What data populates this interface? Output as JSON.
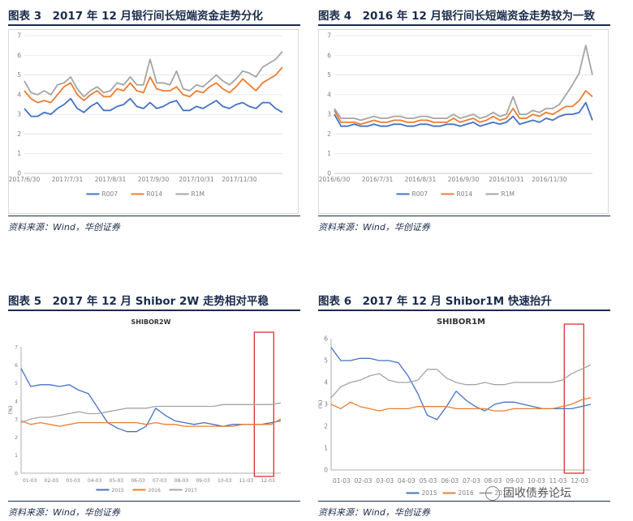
{
  "panels": [
    {
      "caption": "图表 3　2017 年 12 月银行间长短端资金走势分化",
      "source": "资料来源：Wind，华创证券"
    },
    {
      "caption": "图表 4　2016 年 12 月银行间长短端资金走势较为一致",
      "source": "资料来源：Wind，华创证券"
    },
    {
      "caption": "图表 5　2017 年 12 月 Shibor 2W 走势相对平稳",
      "source": "资料来源：Wind，华创证券"
    },
    {
      "caption": "图表 6　2017 年 12 月 Shibor1M 快速抬升",
      "source": "资料来源：Wind，华创证券"
    }
  ],
  "watermark": "固收债券论坛",
  "colors": {
    "blue": "#4472c4",
    "orange": "#ed7d31",
    "gray": "#a5a5a5",
    "box": "#e03030",
    "caption": "#1b2c4c"
  },
  "chart_data": [
    {
      "type": "line",
      "title": "",
      "x_ticks": [
        "2017/6/30",
        "2017/7/31",
        "2017/8/31",
        "2017/9/30",
        "2017/10/31",
        "2017/11/30"
      ],
      "ylim": [
        0,
        7
      ],
      "y_ticks": [
        0,
        1,
        2,
        3,
        4,
        5,
        6,
        7
      ],
      "grid": true,
      "legend": "bottom",
      "series": [
        {
          "name": "R007",
          "color": "blue",
          "values": [
            3.3,
            2.9,
            2.9,
            3.1,
            3.0,
            3.3,
            3.5,
            3.8,
            3.3,
            3.1,
            3.4,
            3.6,
            3.2,
            3.2,
            3.4,
            3.5,
            3.8,
            3.4,
            3.3,
            3.6,
            3.3,
            3.4,
            3.6,
            3.7,
            3.2,
            3.2,
            3.4,
            3.3,
            3.5,
            3.7,
            3.4,
            3.3,
            3.5,
            3.6,
            3.4,
            3.3,
            3.6,
            3.6,
            3.3,
            3.1
          ]
        },
        {
          "name": "R014",
          "color": "orange",
          "values": [
            4.2,
            3.8,
            3.6,
            3.7,
            3.6,
            4.0,
            4.4,
            4.6,
            4.0,
            3.7,
            4.0,
            4.2,
            3.9,
            3.9,
            4.3,
            4.2,
            4.6,
            4.2,
            4.1,
            4.9,
            4.3,
            4.2,
            4.2,
            4.4,
            4.0,
            3.9,
            4.2,
            4.1,
            4.4,
            4.6,
            4.3,
            4.1,
            4.4,
            4.8,
            4.5,
            4.2,
            4.6,
            4.8,
            5.0,
            5.4
          ]
        },
        {
          "name": "R1M",
          "color": "gray",
          "values": [
            4.7,
            4.1,
            4.0,
            4.2,
            4.0,
            4.5,
            4.6,
            4.9,
            4.3,
            3.9,
            4.2,
            4.4,
            4.1,
            4.2,
            4.6,
            4.5,
            4.9,
            4.5,
            4.5,
            5.8,
            4.6,
            4.6,
            4.5,
            5.2,
            4.3,
            4.2,
            4.5,
            4.4,
            4.7,
            5.0,
            4.7,
            4.5,
            4.8,
            5.2,
            5.1,
            4.9,
            5.4,
            5.6,
            5.8,
            6.2
          ]
        }
      ]
    },
    {
      "type": "line",
      "title": "",
      "x_ticks": [
        "2016/6/30",
        "2016/7/31",
        "2016/8/31",
        "2016/9/30",
        "2016/10/31",
        "2016/11/30"
      ],
      "ylim": [
        0,
        7
      ],
      "y_ticks": [
        0,
        1,
        2,
        3,
        4,
        5,
        6,
        7
      ],
      "grid": true,
      "legend": "bottom",
      "series": [
        {
          "name": "R007",
          "color": "blue",
          "values": [
            3.0,
            2.4,
            2.4,
            2.5,
            2.4,
            2.4,
            2.5,
            2.4,
            2.4,
            2.5,
            2.5,
            2.4,
            2.4,
            2.5,
            2.5,
            2.4,
            2.4,
            2.5,
            2.5,
            2.4,
            2.5,
            2.6,
            2.4,
            2.5,
            2.6,
            2.5,
            2.6,
            2.9,
            2.5,
            2.6,
            2.7,
            2.6,
            2.8,
            2.7,
            2.9,
            3.0,
            3.0,
            3.1,
            3.6,
            2.7
          ]
        },
        {
          "name": "R014",
          "color": "orange",
          "values": [
            3.2,
            2.6,
            2.6,
            2.6,
            2.5,
            2.6,
            2.7,
            2.6,
            2.6,
            2.7,
            2.7,
            2.6,
            2.6,
            2.7,
            2.7,
            2.6,
            2.6,
            2.6,
            2.8,
            2.6,
            2.7,
            2.8,
            2.6,
            2.7,
            2.9,
            2.7,
            2.8,
            3.3,
            2.8,
            2.8,
            3.0,
            2.9,
            3.1,
            3.0,
            3.2,
            3.4,
            3.4,
            3.7,
            4.2,
            3.9
          ]
        },
        {
          "name": "R1M",
          "color": "gray",
          "values": [
            3.3,
            2.8,
            2.8,
            2.8,
            2.7,
            2.8,
            2.9,
            2.8,
            2.8,
            2.9,
            2.9,
            2.8,
            2.8,
            2.9,
            2.9,
            2.8,
            2.8,
            2.8,
            3.0,
            2.8,
            2.9,
            3.0,
            2.8,
            2.9,
            3.1,
            2.9,
            3.0,
            3.9,
            3.0,
            3.0,
            3.2,
            3.1,
            3.3,
            3.3,
            3.5,
            4.0,
            4.5,
            5.1,
            6.5,
            5.0
          ]
        }
      ]
    },
    {
      "type": "line",
      "title": "SHIBOR2W",
      "ylabel": "(%)",
      "x_ticks": [
        "01-03",
        "02-03",
        "03-03",
        "04-03",
        "05-03",
        "06-03",
        "07-03",
        "08-03",
        "09-03",
        "10-03",
        "11-03",
        "12-03"
      ],
      "ylim": [
        0,
        7
      ],
      "y_ticks": [
        0,
        1,
        2,
        3,
        4,
        5,
        6,
        7
      ],
      "grid": false,
      "legend": "bottom",
      "highlight": "12-03 to year end",
      "series": [
        {
          "name": "2015",
          "color": "blue",
          "values": [
            5.8,
            4.8,
            4.9,
            4.9,
            4.8,
            4.9,
            4.6,
            4.4,
            3.6,
            2.8,
            2.5,
            2.3,
            2.3,
            2.6,
            3.6,
            3.2,
            2.9,
            2.8,
            2.7,
            2.8,
            2.7,
            2.6,
            2.7,
            2.7,
            2.7,
            2.7,
            2.8,
            2.9
          ]
        },
        {
          "name": "2016",
          "color": "orange",
          "values": [
            2.9,
            2.7,
            2.8,
            2.7,
            2.6,
            2.7,
            2.8,
            2.8,
            2.8,
            2.8,
            2.8,
            2.8,
            2.8,
            2.7,
            2.8,
            2.7,
            2.7,
            2.6,
            2.6,
            2.6,
            2.6,
            2.6,
            2.6,
            2.7,
            2.7,
            2.7,
            2.7,
            3.0
          ]
        },
        {
          "name": "2017",
          "color": "gray",
          "values": [
            2.8,
            3.0,
            3.1,
            3.1,
            3.2,
            3.3,
            3.4,
            3.3,
            3.3,
            3.4,
            3.5,
            3.6,
            3.6,
            3.6,
            3.7,
            3.7,
            3.7,
            3.7,
            3.7,
            3.7,
            3.7,
            3.8,
            3.8,
            3.8,
            3.8,
            3.8,
            3.8,
            3.9
          ]
        }
      ]
    },
    {
      "type": "line",
      "title": "SHIBOR1M",
      "ylabel": "(%)",
      "x_ticks": [
        "01-03",
        "02-03",
        "03-03",
        "04-03",
        "05-03",
        "06-03",
        "07-03",
        "08-03",
        "09-03",
        "10-03",
        "11-03",
        "12-03"
      ],
      "ylim": [
        0,
        6
      ],
      "y_ticks": [
        0,
        1,
        2,
        3,
        4,
        5,
        6
      ],
      "grid": false,
      "legend": "bottom",
      "highlight": "12-03 to year end",
      "series": [
        {
          "name": "2015",
          "color": "blue",
          "values": [
            5.6,
            5.0,
            5.0,
            5.1,
            5.1,
            5.0,
            5.0,
            4.9,
            4.3,
            3.5,
            2.5,
            2.3,
            2.9,
            3.6,
            3.2,
            2.9,
            2.7,
            3.0,
            3.1,
            3.1,
            3.0,
            2.9,
            2.8,
            2.8,
            2.8,
            2.8,
            2.9,
            3.0
          ]
        },
        {
          "name": "2016",
          "color": "orange",
          "values": [
            3.0,
            2.8,
            3.1,
            2.9,
            2.8,
            2.7,
            2.8,
            2.8,
            2.8,
            2.9,
            2.9,
            2.9,
            2.9,
            2.8,
            2.8,
            2.8,
            2.8,
            2.7,
            2.7,
            2.8,
            2.8,
            2.8,
            2.8,
            2.8,
            2.9,
            3.0,
            3.2,
            3.3
          ]
        },
        {
          "name": "2017",
          "color": "gray",
          "values": [
            3.3,
            3.8,
            4.0,
            4.1,
            4.3,
            4.4,
            4.1,
            4.0,
            4.0,
            4.1,
            4.6,
            4.6,
            4.2,
            4.0,
            3.9,
            3.9,
            4.0,
            3.9,
            3.9,
            4.0,
            4.0,
            4.0,
            4.0,
            4.0,
            4.1,
            4.4,
            4.6,
            4.8
          ]
        }
      ]
    }
  ]
}
